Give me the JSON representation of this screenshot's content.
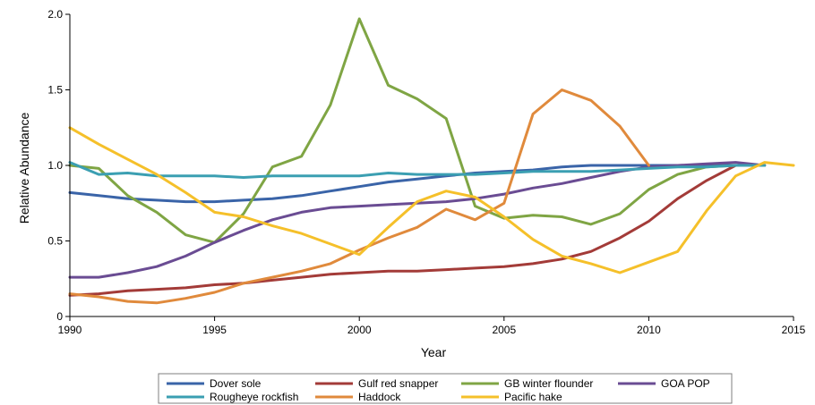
{
  "chart_data": {
    "type": "line",
    "xlabel": "Year",
    "ylabel": "Relative Abundance",
    "xlim": [
      1990,
      2015
    ],
    "ylim": [
      0,
      2.0
    ],
    "x_ticks": [
      "1990",
      "1995",
      "2000",
      "2005",
      "2010",
      "2015"
    ],
    "y_ticks": [
      "0",
      "0.5",
      "1.0",
      "1.5",
      "2.0"
    ],
    "grid": false,
    "legend_position": "bottom",
    "series": [
      {
        "name": "Dover sole",
        "color": "#3a64a8",
        "x": [
          1990,
          1991,
          1992,
          1993,
          1994,
          1995,
          1996,
          1997,
          1998,
          1999,
          2000,
          2001,
          2002,
          2003,
          2004,
          2005,
          2006,
          2007,
          2008,
          2009,
          2010,
          2011,
          2012,
          2013,
          2014
        ],
        "y": [
          0.82,
          0.8,
          0.78,
          0.77,
          0.76,
          0.76,
          0.77,
          0.78,
          0.8,
          0.83,
          0.86,
          0.89,
          0.91,
          0.93,
          0.95,
          0.96,
          0.97,
          0.99,
          1.0,
          1.0,
          1.0,
          1.0,
          1.0,
          1.0,
          1.0
        ]
      },
      {
        "name": "Gulf red snapper",
        "color": "#a33b38",
        "x": [
          1990,
          1991,
          1992,
          1993,
          1994,
          1995,
          1996,
          1997,
          1998,
          1999,
          2000,
          2001,
          2002,
          2003,
          2004,
          2005,
          2006,
          2007,
          2008,
          2009,
          2010,
          2011,
          2012,
          2013,
          2014
        ],
        "y": [
          0.14,
          0.15,
          0.17,
          0.18,
          0.19,
          0.21,
          0.22,
          0.24,
          0.26,
          0.28,
          0.29,
          0.3,
          0.3,
          0.31,
          0.32,
          0.33,
          0.35,
          0.38,
          0.43,
          0.52,
          0.63,
          0.78,
          0.9,
          1.0,
          1.0
        ]
      },
      {
        "name": "GB winter flounder",
        "color": "#7fa544",
        "x": [
          1990,
          1991,
          1992,
          1993,
          1994,
          1995,
          1996,
          1997,
          1998,
          1999,
          2000,
          2001,
          2002,
          2003,
          2004,
          2005,
          2006,
          2007,
          2008,
          2009,
          2010,
          2011,
          2012,
          2013,
          2014
        ],
        "y": [
          1.0,
          0.98,
          0.8,
          0.69,
          0.54,
          0.49,
          0.68,
          0.99,
          1.06,
          1.4,
          1.97,
          1.53,
          1.44,
          1.31,
          0.73,
          0.65,
          0.67,
          0.66,
          0.61,
          0.68,
          0.84,
          0.94,
          0.99,
          1.0,
          1.0
        ]
      },
      {
        "name": "GOA POP",
        "color": "#6a4c93",
        "x": [
          1990,
          1991,
          1992,
          1993,
          1994,
          1995,
          1996,
          1997,
          1998,
          1999,
          2000,
          2001,
          2002,
          2003,
          2004,
          2005,
          2006,
          2007,
          2008,
          2009,
          2010,
          2011,
          2012,
          2013,
          2014
        ],
        "y": [
          0.26,
          0.26,
          0.29,
          0.33,
          0.4,
          0.49,
          0.57,
          0.64,
          0.69,
          0.72,
          0.73,
          0.74,
          0.75,
          0.76,
          0.78,
          0.81,
          0.85,
          0.88,
          0.92,
          0.96,
          0.99,
          1.0,
          1.01,
          1.02,
          1.0
        ]
      },
      {
        "name": "Rougheye rockfish",
        "color": "#3b9fb2",
        "x": [
          1990,
          1991,
          1992,
          1993,
          1994,
          1995,
          1996,
          1997,
          1998,
          1999,
          2000,
          2001,
          2002,
          2003,
          2004,
          2005,
          2006,
          2007,
          2008,
          2009,
          2010,
          2011,
          2012,
          2013,
          2014
        ],
        "y": [
          1.02,
          0.94,
          0.95,
          0.93,
          0.93,
          0.93,
          0.92,
          0.93,
          0.93,
          0.93,
          0.93,
          0.95,
          0.94,
          0.94,
          0.94,
          0.95,
          0.96,
          0.96,
          0.96,
          0.97,
          0.98,
          0.99,
          0.99,
          1.0,
          1.0
        ]
      },
      {
        "name": "Haddock",
        "color": "#e08a3c",
        "x": [
          1990,
          1991,
          1992,
          1993,
          1994,
          1995,
          1996,
          1997,
          1998,
          1999,
          2000,
          2001,
          2002,
          2003,
          2004,
          2005,
          2006,
          2007,
          2008,
          2009,
          2010
        ],
        "y": [
          0.15,
          0.13,
          0.1,
          0.09,
          0.12,
          0.16,
          0.22,
          0.26,
          0.3,
          0.35,
          0.44,
          0.52,
          0.59,
          0.71,
          0.64,
          0.75,
          1.34,
          1.5,
          1.43,
          1.26,
          1.0
        ]
      },
      {
        "name": "Pacific hake",
        "color": "#f5c02a",
        "x": [
          1990,
          1991,
          1992,
          1993,
          1994,
          1995,
          1996,
          1997,
          1998,
          1999,
          2000,
          2001,
          2002,
          2003,
          2004,
          2005,
          2006,
          2007,
          2008,
          2009,
          2010,
          2011,
          2012,
          2013,
          2014,
          2015
        ],
        "y": [
          1.25,
          1.14,
          1.04,
          0.94,
          0.82,
          0.69,
          0.66,
          0.6,
          0.55,
          0.48,
          0.41,
          0.59,
          0.76,
          0.83,
          0.79,
          0.66,
          0.51,
          0.4,
          0.35,
          0.29,
          0.36,
          0.43,
          0.7,
          0.93,
          1.02,
          1.0
        ]
      }
    ]
  }
}
